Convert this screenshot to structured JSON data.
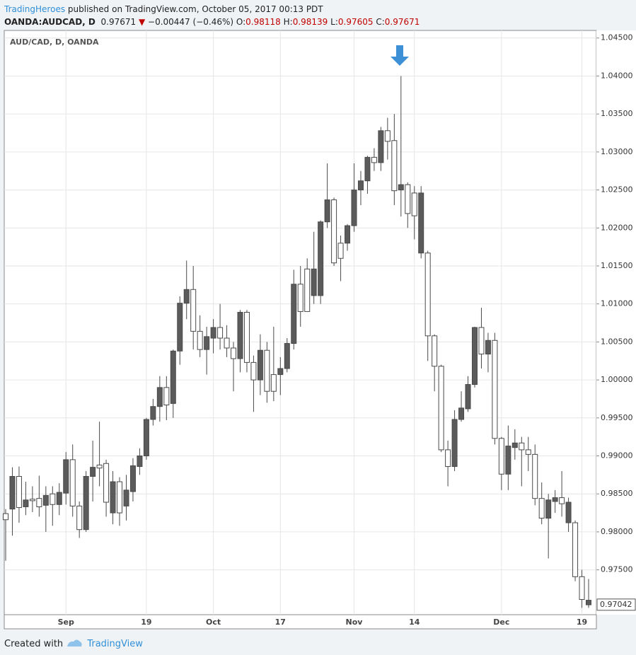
{
  "header": {
    "author": "TradingHeroes",
    "published": "published on TradingView.com, October 05, 2017 00:13 PDT",
    "symbol": "OANDA:AUDCAD, D",
    "last": "0.97671",
    "direction": "▼",
    "change": "−0.00447 (−0.46%)",
    "o_label": "O:",
    "o_value": "0.98118",
    "h_label": "H:",
    "h_value": "0.98139",
    "l_label": "L:",
    "l_value": "0.97605",
    "c_label": "C:",
    "c_value": "0.97671"
  },
  "chart_data": {
    "type": "candlestick",
    "title": "AUD/CAD, D, OANDA",
    "categories": [
      null,
      null,
      null,
      null,
      null,
      null,
      null,
      null,
      null,
      "Sep",
      null,
      null,
      null,
      null,
      null,
      null,
      null,
      null,
      null,
      null,
      null,
      "19",
      null,
      null,
      null,
      null,
      null,
      null,
      null,
      null,
      null,
      "Oct",
      null,
      null,
      null,
      null,
      null,
      null,
      null,
      null,
      null,
      "17",
      null,
      null,
      null,
      null,
      null,
      null,
      null,
      null,
      null,
      null,
      "Nov",
      null,
      null,
      null,
      null,
      null,
      null,
      null,
      null,
      "14",
      null,
      null,
      null,
      null,
      null,
      null,
      null,
      null,
      null,
      null,
      null,
      null,
      "Dec",
      null,
      null,
      null,
      null,
      null,
      null,
      null,
      null,
      null,
      null,
      null,
      "19",
      null
    ],
    "open": [
      0.9816,
      0.9873,
      0.9832,
      0.9842,
      0.9841,
      0.9833,
      0.9848,
      0.9836,
      0.9852,
      0.9895,
      0.9834,
      0.9803,
      0.9873,
      0.9885,
      0.9884,
      0.9839,
      0.9866,
      0.9825,
      0.9855,
      0.9887,
      0.99,
      0.9948,
      0.9965,
      0.999,
      0.9967,
      1.0038,
      1.0101,
      1.0119,
      1.0064,
      1.004,
      1.0057,
      1.0069,
      1.0055,
      1.0042,
      1.0028,
      1.0089,
      1.0023,
      1.0,
      1.0039,
      0.9985,
      0.9985,
      1.0015,
      1.0048,
      1.0126,
      1.009,
      1.009,
      1.0146,
      1.0208,
      1.0237,
      1.0154,
      1.016,
      1.0203,
      1.025,
      1.0262,
      1.0293,
      1.0286,
      1.0328,
      1.0314,
      1.0249,
      1.0257,
      1.0219,
      1.0216,
      1.0246,
      1.0058,
      1.0018,
      0.9908,
      0.9886,
      0.9948,
      0.9963,
      0.9994,
      1.0069,
      1.0034,
      1.0052,
      0.9923,
      0.9876,
      0.9913,
      0.9917,
      0.9908,
      0.9902,
      0.9844,
      0.9818,
      0.9842,
      0.9845,
      0.9837,
      0.9839,
      0.9741,
      0.9711,
      0.971
    ],
    "high": [
      0.983,
      0.9885,
      0.9886,
      0.9866,
      0.986,
      0.9874,
      0.986,
      0.986,
      0.9864,
      0.9905,
      0.9915,
      0.984,
      0.988,
      0.992,
      0.9945,
      0.9895,
      0.988,
      0.9872,
      0.9875,
      0.9897,
      0.991,
      0.995,
      0.9975,
      1.0005,
      1.0005,
      1.004,
      1.011,
      1.0157,
      1.015,
      1.0085,
      1.007,
      1.008,
      1.01,
      1.0072,
      1.005,
      1.0092,
      1.0092,
      1.0032,
      1.006,
      1.005,
      1.007,
      1.003,
      1.0055,
      1.0145,
      1.015,
      1.016,
      1.0195,
      1.021,
      1.0285,
      1.024,
      1.019,
      1.0205,
      1.0285,
      1.0275,
      1.0295,
      1.0305,
      1.0333,
      1.0345,
      1.035,
      1.04,
      1.026,
      1.0255,
      1.0255,
      1.017,
      1.006,
      1.002,
      0.992,
      0.996,
      0.9985,
      1.0005,
      1.007,
      1.0095,
      1.0062,
      1.0062,
      0.9925,
      0.994,
      0.9935,
      0.9925,
      0.9925,
      0.9915,
      0.9865,
      0.985,
      0.9855,
      0.988,
      0.9845,
      0.9815,
      0.975,
      0.9738
    ],
    "low": [
      0.9762,
      0.9795,
      0.9812,
      0.9822,
      0.9826,
      0.982,
      0.98,
      0.9808,
      0.9822,
      0.9836,
      0.982,
      0.9792,
      0.98,
      0.984,
      0.986,
      0.982,
      0.981,
      0.9808,
      0.9815,
      0.984,
      0.9875,
      0.9895,
      0.994,
      0.9945,
      0.9947,
      0.995,
      1.002,
      1.008,
      1.004,
      1.003,
      1.0007,
      1.0035,
      1.004,
      1.003,
      0.9985,
      1.001,
      1.001,
      0.9958,
      0.998,
      0.997,
      0.9972,
      0.998,
      1.001,
      1.004,
      1.007,
      1.009,
      1.01,
      1.01,
      1.02,
      1.015,
      1.013,
      1.017,
      1.0195,
      1.023,
      1.0245,
      1.0275,
      1.0275,
      1.029,
      1.023,
      1.0215,
      1.02,
      1.0185,
      1.016,
      1.0025,
      0.9985,
      0.9905,
      0.986,
      0.988,
      0.9945,
      0.9958,
      0.999,
      1.0015,
      1.001,
      0.9915,
      0.9855,
      0.9855,
      0.9895,
      0.986,
      0.988,
      0.9835,
      0.981,
      0.9765,
      0.9825,
      0.982,
      0.98,
      0.9735,
      0.97,
      0.97
    ],
    "close": [
      0.9824,
      0.983,
      0.9873,
      0.9833,
      0.9843,
      0.9844,
      0.9835,
      0.985,
      0.9836,
      0.9851,
      0.9895,
      0.9834,
      0.9803,
      0.9873,
      0.9888,
      0.989,
      0.9825,
      0.9866,
      0.9834,
      0.9853,
      0.9886,
      0.99,
      0.9948,
      0.9965,
      0.999,
      0.9969,
      1.0038,
      1.0101,
      1.0119,
      1.0064,
      1.004,
      1.0055,
      1.0069,
      1.0055,
      1.0042,
      1.0028,
      1.0089,
      1.0023,
      1.0,
      1.0039,
      1.0007,
      1.0007,
      1.0015,
      1.0048,
      1.0126,
      1.0146,
      1.0111,
      1.0111,
      1.0208,
      1.0237,
      1.018,
      1.018,
      1.0203,
      1.025,
      1.0262,
      1.0293,
      1.0286,
      1.0328,
      1.0315,
      1.025,
      1.0257,
      1.0246,
      1.0167,
      1.0167,
      1.0058,
      1.0018,
      0.9908,
      0.9886,
      0.9948,
      0.9962,
      0.9994,
      1.0069,
      1.0034,
      1.0052,
      0.9923,
      0.9876,
      0.9911,
      0.9917,
      0.9908,
      0.9902,
      0.9844,
      0.9818,
      0.984,
      0.9845,
      0.9812,
      0.9812,
      0.9741,
      0.9704
    ],
    "up_color": "#ffffff",
    "down_color": "#5b5b5b",
    "wick_color": "#4a4a4a",
    "ylim": [
      0.9691,
      1.046
    ],
    "yticks": [
      {
        "value": 0.975,
        "label": "0.97500"
      },
      {
        "value": 0.98,
        "label": "0.98000"
      },
      {
        "value": 0.985,
        "label": "0.98500"
      },
      {
        "value": 0.99,
        "label": "0.99000"
      },
      {
        "value": 0.995,
        "label": "0.99500"
      },
      {
        "value": 1.0,
        "label": "1.00000"
      },
      {
        "value": 1.005,
        "label": "1.00500"
      },
      {
        "value": 1.01,
        "label": "1.01000"
      },
      {
        "value": 1.015,
        "label": "1.01500"
      },
      {
        "value": 1.02,
        "label": "1.02000"
      },
      {
        "value": 1.025,
        "label": "1.02500"
      },
      {
        "value": 1.03,
        "label": "1.03000"
      },
      {
        "value": 1.035,
        "label": "1.03500"
      },
      {
        "value": 1.04,
        "label": "1.04000"
      },
      {
        "value": 1.045,
        "label": "1.04500"
      }
    ],
    "price_marker": 0.97042,
    "grid": true
  },
  "footer": {
    "created": "Created with",
    "brand": "TradingView"
  }
}
